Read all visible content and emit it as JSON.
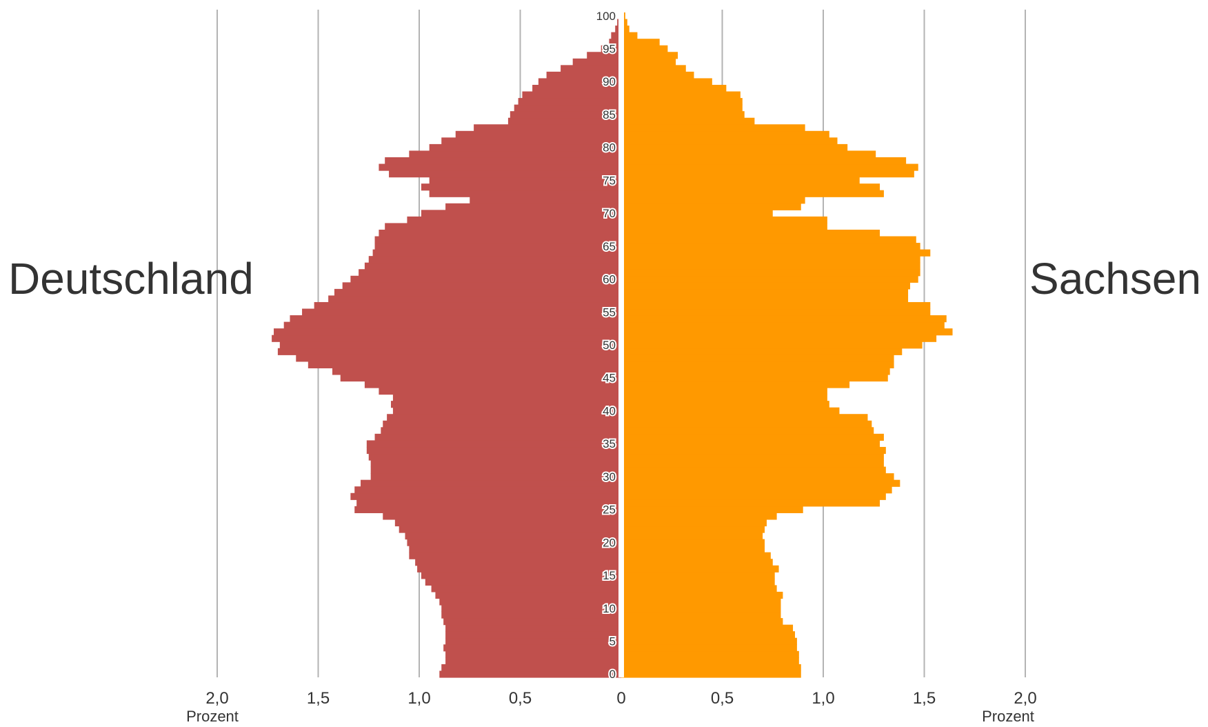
{
  "labels": {
    "left_region": "Deutschland",
    "right_region": "Sachsen"
  },
  "colors": {
    "left": "#c0504d",
    "right": "#ff9900",
    "grid": "#b3b3b3",
    "axis_text": "#333333"
  },
  "chart_data": {
    "type": "bar",
    "orientation": "horizontal-population-pyramid",
    "x_unit_label": "Prozent",
    "x_ticks": [
      "2,0",
      "1,5",
      "1,0",
      "0,5",
      "0",
      "0,5",
      "1,0",
      "1,5",
      "2,0"
    ],
    "x_tick_values": [
      -2.0,
      -1.5,
      -1.0,
      -0.5,
      0,
      0.5,
      1.0,
      1.5,
      2.0
    ],
    "y_tick_labels": [
      "0",
      "5",
      "10",
      "15",
      "20",
      "25",
      "30",
      "35",
      "40",
      "45",
      "50",
      "55",
      "60",
      "65",
      "70",
      "75",
      "80",
      "85",
      "90",
      "95",
      "100"
    ],
    "age_min": 0,
    "age_max": 100,
    "xlim": [
      -2.0,
      2.0
    ],
    "series": [
      {
        "name": "Deutschland",
        "side": "left",
        "values": [
          0.9,
          0.89,
          0.87,
          0.87,
          0.88,
          0.87,
          0.87,
          0.87,
          0.88,
          0.89,
          0.89,
          0.9,
          0.92,
          0.94,
          0.97,
          0.99,
          1.01,
          1.02,
          1.05,
          1.05,
          1.06,
          1.07,
          1.1,
          1.12,
          1.18,
          1.32,
          1.31,
          1.34,
          1.32,
          1.29,
          1.24,
          1.24,
          1.24,
          1.25,
          1.26,
          1.26,
          1.22,
          1.19,
          1.18,
          1.16,
          1.13,
          1.14,
          1.13,
          1.2,
          1.27,
          1.39,
          1.43,
          1.55,
          1.61,
          1.7,
          1.69,
          1.73,
          1.72,
          1.67,
          1.64,
          1.58,
          1.52,
          1.45,
          1.42,
          1.38,
          1.34,
          1.3,
          1.27,
          1.25,
          1.23,
          1.22,
          1.22,
          1.2,
          1.17,
          1.06,
          0.99,
          0.87,
          0.75,
          0.95,
          0.99,
          0.95,
          1.15,
          1.2,
          1.17,
          1.05,
          0.95,
          0.89,
          0.82,
          0.73,
          0.56,
          0.55,
          0.53,
          0.51,
          0.49,
          0.44,
          0.41,
          0.37,
          0.3,
          0.24,
          0.17,
          0.1,
          0.06,
          0.05,
          0.03,
          0.02,
          0.01
        ]
      },
      {
        "name": "Sachsen",
        "side": "right",
        "values": [
          0.89,
          0.89,
          0.88,
          0.88,
          0.87,
          0.87,
          0.86,
          0.85,
          0.8,
          0.79,
          0.79,
          0.79,
          0.8,
          0.77,
          0.76,
          0.76,
          0.78,
          0.75,
          0.74,
          0.71,
          0.71,
          0.7,
          0.71,
          0.72,
          0.77,
          0.9,
          1.28,
          1.31,
          1.34,
          1.38,
          1.35,
          1.31,
          1.3,
          1.3,
          1.31,
          1.28,
          1.3,
          1.25,
          1.24,
          1.22,
          1.08,
          1.03,
          1.02,
          1.02,
          1.13,
          1.32,
          1.33,
          1.35,
          1.35,
          1.39,
          1.49,
          1.56,
          1.64,
          1.6,
          1.61,
          1.53,
          1.53,
          1.42,
          1.42,
          1.43,
          1.47,
          1.48,
          1.48,
          1.48,
          1.53,
          1.48,
          1.46,
          1.28,
          1.02,
          1.02,
          0.75,
          0.89,
          0.91,
          1.3,
          1.28,
          1.18,
          1.45,
          1.47,
          1.41,
          1.26,
          1.12,
          1.07,
          1.03,
          0.91,
          0.66,
          0.61,
          0.6,
          0.6,
          0.59,
          0.52,
          0.45,
          0.36,
          0.32,
          0.27,
          0.28,
          0.23,
          0.19,
          0.08,
          0.04,
          0.03,
          0.02
        ]
      }
    ]
  }
}
